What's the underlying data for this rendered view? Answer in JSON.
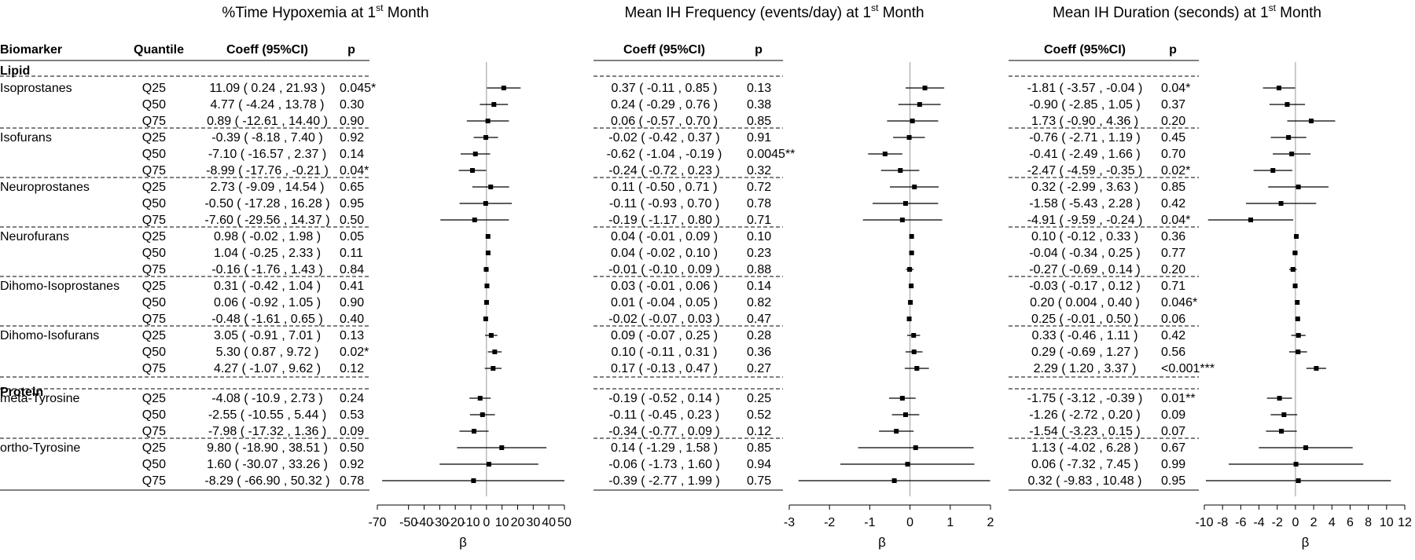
{
  "figure": {
    "headers": {
      "biomarker": "Biomarker",
      "quantile": "Quantile",
      "coeff": "Coeff (95%CI)",
      "p": "p"
    }
  },
  "chart_data": {
    "type": "forest",
    "sections": [
      {
        "name": "Lipid",
        "row": 0
      },
      {
        "name": "Protein",
        "row": 19
      }
    ],
    "rows": [
      {
        "biomarker": "Isoprostanes",
        "quantile": "Q25"
      },
      {
        "biomarker": "",
        "quantile": "Q50"
      },
      {
        "biomarker": "",
        "quantile": "Q75"
      },
      {
        "biomarker": "Isofurans",
        "quantile": "Q25"
      },
      {
        "biomarker": "",
        "quantile": "Q50"
      },
      {
        "biomarker": "",
        "quantile": "Q75"
      },
      {
        "biomarker": "Neuroprostanes",
        "quantile": "Q25"
      },
      {
        "biomarker": "",
        "quantile": "Q50"
      },
      {
        "biomarker": "",
        "quantile": "Q75"
      },
      {
        "biomarker": "Neurofurans",
        "quantile": "Q25"
      },
      {
        "biomarker": "",
        "quantile": "Q50"
      },
      {
        "biomarker": "",
        "quantile": "Q75"
      },
      {
        "biomarker": "Dihomo-Isoprostanes",
        "quantile": "Q25"
      },
      {
        "biomarker": "",
        "quantile": "Q50"
      },
      {
        "biomarker": "",
        "quantile": "Q75"
      },
      {
        "biomarker": "Dihomo-Isofurans",
        "quantile": "Q25"
      },
      {
        "biomarker": "",
        "quantile": "Q50"
      },
      {
        "biomarker": "",
        "quantile": "Q75"
      },
      {
        "biomarker": "meta-Tyrosine",
        "quantile": "Q25"
      },
      {
        "biomarker": "",
        "quantile": "Q50"
      },
      {
        "biomarker": "",
        "quantile": "Q75"
      },
      {
        "biomarker": "ortho-Tyrosine",
        "quantile": "Q25"
      },
      {
        "biomarker": "",
        "quantile": "Q50"
      },
      {
        "biomarker": "",
        "quantile": "Q75"
      }
    ],
    "panels": [
      {
        "title": "%Time Hypoxemia at 1",
        "title_sup": "st",
        "title_end": " Month",
        "xlabel": "β",
        "xlim": [
          -70,
          50
        ],
        "xticks": [
          -70,
          -50,
          -40,
          -30,
          -20,
          -10,
          0,
          10,
          20,
          30,
          40,
          50
        ],
        "xtick_labels": [
          "-70",
          "-50",
          "-40",
          "-30",
          "-20",
          "-10",
          "0",
          "10",
          "20",
          "30",
          "40",
          "50"
        ],
        "estimates": [
          {
            "coeff": "11.09 ( 0.24 ,  21.93 )",
            "p": "0.045*",
            "est": 11.09,
            "lo": 0.24,
            "hi": 21.93
          },
          {
            "coeff": "4.77 ( -4.24 ,  13.78 )",
            "p": "0.30",
            "est": 4.77,
            "lo": -4.24,
            "hi": 13.78
          },
          {
            "coeff": "0.89 ( -12.61 ,  14.40 )",
            "p": "0.90",
            "est": 0.89,
            "lo": -12.61,
            "hi": 14.4
          },
          {
            "coeff": "-0.39 ( -8.18 ,  7.40 )",
            "p": "0.92",
            "est": -0.39,
            "lo": -8.18,
            "hi": 7.4
          },
          {
            "coeff": "-7.10 ( -16.57 ,  2.37 )",
            "p": "0.14",
            "est": -7.1,
            "lo": -16.57,
            "hi": 2.37
          },
          {
            "coeff": "-8.99 ( -17.76 ,  -0.21 )",
            "p": "0.04*",
            "est": -8.99,
            "lo": -17.76,
            "hi": -0.21
          },
          {
            "coeff": "2.73 ( -9.09 ,  14.54 )",
            "p": "0.65",
            "est": 2.73,
            "lo": -9.09,
            "hi": 14.54
          },
          {
            "coeff": "-0.50 ( -17.28 ,  16.28 )",
            "p": "0.95",
            "est": -0.5,
            "lo": -17.28,
            "hi": 16.28
          },
          {
            "coeff": "-7.60 ( -29.56 ,  14.37 )",
            "p": "0.50",
            "est": -7.6,
            "lo": -29.56,
            "hi": 14.37
          },
          {
            "coeff": "0.98 ( -0.02 ,  1.98 )",
            "p": "0.05",
            "est": 0.98,
            "lo": -0.02,
            "hi": 1.98
          },
          {
            "coeff": "1.04 ( -0.25 ,  2.33 )",
            "p": "0.11",
            "est": 1.04,
            "lo": -0.25,
            "hi": 2.33
          },
          {
            "coeff": "-0.16 ( -1.76 ,  1.43 )",
            "p": "0.84",
            "est": -0.16,
            "lo": -1.76,
            "hi": 1.43
          },
          {
            "coeff": "0.31 ( -0.42 ,  1.04 )",
            "p": "0.41",
            "est": 0.31,
            "lo": -0.42,
            "hi": 1.04
          },
          {
            "coeff": "0.06 ( -0.92 ,  1.05 )",
            "p": "0.90",
            "est": 0.06,
            "lo": -0.92,
            "hi": 1.05
          },
          {
            "coeff": "-0.48 ( -1.61 ,  0.65 )",
            "p": "0.40",
            "est": -0.48,
            "lo": -1.61,
            "hi": 0.65
          },
          {
            "coeff": "3.05 ( -0.91 ,  7.01 )",
            "p": "0.13",
            "est": 3.05,
            "lo": -0.91,
            "hi": 7.01
          },
          {
            "coeff": "5.30 ( 0.87 ,  9.72 )",
            "p": "0.02*",
            "est": 5.3,
            "lo": 0.87,
            "hi": 9.72
          },
          {
            "coeff": "4.27 ( -1.07 ,  9.62 )",
            "p": "0.12",
            "est": 4.27,
            "lo": -1.07,
            "hi": 9.62
          },
          {
            "coeff": "-4.08 ( -10.9 ,  2.73 )",
            "p": "0.24",
            "est": -4.08,
            "lo": -10.9,
            "hi": 2.73
          },
          {
            "coeff": "-2.55 ( -10.55 ,  5.44 )",
            "p": "0.53",
            "est": -2.55,
            "lo": -10.55,
            "hi": 5.44
          },
          {
            "coeff": "-7.98 ( -17.32 ,  1.36 )",
            "p": "0.09",
            "est": -7.98,
            "lo": -17.32,
            "hi": 1.36
          },
          {
            "coeff": "9.80 ( -18.90 ,  38.51 )",
            "p": "0.50",
            "est": 9.8,
            "lo": -18.9,
            "hi": 38.51
          },
          {
            "coeff": "1.60 ( -30.07 ,  33.26 )",
            "p": "0.92",
            "est": 1.6,
            "lo": -30.07,
            "hi": 33.26
          },
          {
            "coeff": "-8.29 ( -66.90 ,  50.32 )",
            "p": "0.78",
            "est": -8.29,
            "lo": -66.9,
            "hi": 50.32
          }
        ]
      },
      {
        "title": "Mean IH Frequency (events/day) at 1",
        "title_sup": "st",
        "title_end": " Month",
        "xlabel": "β",
        "xlim": [
          -3,
          2
        ],
        "xticks": [
          -3,
          -2,
          -1,
          0,
          1,
          2
        ],
        "xtick_labels": [
          "-3",
          "-2",
          "-1",
          "0",
          "1",
          "2"
        ],
        "estimates": [
          {
            "coeff": "0.37 ( -0.11 ,  0.85 )",
            "p": "0.13",
            "est": 0.37,
            "lo": -0.11,
            "hi": 0.85
          },
          {
            "coeff": "0.24 ( -0.29 ,  0.76 )",
            "p": "0.38",
            "est": 0.24,
            "lo": -0.29,
            "hi": 0.76
          },
          {
            "coeff": "0.06 ( -0.57 ,  0.70 )",
            "p": "0.85",
            "est": 0.06,
            "lo": -0.57,
            "hi": 0.7
          },
          {
            "coeff": "-0.02 ( -0.42 ,  0.37 )",
            "p": "0.91",
            "est": -0.02,
            "lo": -0.42,
            "hi": 0.37
          },
          {
            "coeff": "-0.62 ( -1.04 ,  -0.19 )",
            "p": "0.0045**",
            "est": -0.62,
            "lo": -1.04,
            "hi": -0.19
          },
          {
            "coeff": "-0.24 ( -0.72 ,  0.23 )",
            "p": "0.32",
            "est": -0.24,
            "lo": -0.72,
            "hi": 0.23
          },
          {
            "coeff": "0.11 ( -0.50 ,  0.71 )",
            "p": "0.72",
            "est": 0.11,
            "lo": -0.5,
            "hi": 0.71
          },
          {
            "coeff": "-0.11 ( -0.93 ,  0.70 )",
            "p": "0.78",
            "est": -0.11,
            "lo": -0.93,
            "hi": 0.7
          },
          {
            "coeff": "-0.19 ( -1.17 ,  0.80 )",
            "p": "0.71",
            "est": -0.19,
            "lo": -1.17,
            "hi": 0.8
          },
          {
            "coeff": "0.04 ( -0.01 ,  0.09 )",
            "p": "0.10",
            "est": 0.04,
            "lo": -0.01,
            "hi": 0.09
          },
          {
            "coeff": "0.04 ( -0.02 ,  0.10 )",
            "p": "0.23",
            "est": 0.04,
            "lo": -0.02,
            "hi": 0.1
          },
          {
            "coeff": "-0.01 ( -0.10 ,  0.09 )",
            "p": "0.88",
            "est": -0.01,
            "lo": -0.1,
            "hi": 0.09
          },
          {
            "coeff": "0.03 ( -0.01 ,  0.06 )",
            "p": "0.14",
            "est": 0.03,
            "lo": -0.01,
            "hi": 0.06
          },
          {
            "coeff": "0.01 ( -0.04 ,  0.05 )",
            "p": "0.82",
            "est": 0.01,
            "lo": -0.04,
            "hi": 0.05
          },
          {
            "coeff": "-0.02 ( -0.07 ,  0.03 )",
            "p": "0.47",
            "est": -0.02,
            "lo": -0.07,
            "hi": 0.03
          },
          {
            "coeff": "0.09 ( -0.07 ,  0.25 )",
            "p": "0.28",
            "est": 0.09,
            "lo": -0.07,
            "hi": 0.25
          },
          {
            "coeff": "0.10 ( -0.11 ,  0.31 )",
            "p": "0.36",
            "est": 0.1,
            "lo": -0.11,
            "hi": 0.31
          },
          {
            "coeff": "0.17 ( -0.13 ,  0.47 )",
            "p": "0.27",
            "est": 0.17,
            "lo": -0.13,
            "hi": 0.47
          },
          {
            "coeff": "-0.19 ( -0.52 ,  0.14 )",
            "p": "0.25",
            "est": -0.19,
            "lo": -0.52,
            "hi": 0.14
          },
          {
            "coeff": "-0.11 ( -0.45 ,  0.23 )",
            "p": "0.52",
            "est": -0.11,
            "lo": -0.45,
            "hi": 0.23
          },
          {
            "coeff": "-0.34 ( -0.77 ,  0.09 )",
            "p": "0.12",
            "est": -0.34,
            "lo": -0.77,
            "hi": 0.09
          },
          {
            "coeff": "0.14 ( -1.29 ,  1.58 )",
            "p": "0.85",
            "est": 0.14,
            "lo": -1.29,
            "hi": 1.58
          },
          {
            "coeff": "-0.06 ( -1.73 ,  1.60 )",
            "p": "0.94",
            "est": -0.06,
            "lo": -1.73,
            "hi": 1.6
          },
          {
            "coeff": "-0.39 ( -2.77 ,  1.99 )",
            "p": "0.75",
            "est": -0.39,
            "lo": -2.77,
            "hi": 1.99
          }
        ]
      },
      {
        "title": "Mean IH Duration (seconds) at 1",
        "title_sup": "st",
        "title_end": " Month",
        "xlabel": "β",
        "xlim": [
          -10,
          12
        ],
        "xticks": [
          -10,
          -8,
          -6,
          -4,
          -2,
          0,
          2,
          4,
          6,
          8,
          10,
          12
        ],
        "xtick_labels": [
          "-10",
          "-8",
          "-6",
          "-4",
          "-2",
          "0",
          "2",
          "4",
          "6",
          "8",
          "10",
          "12"
        ],
        "estimates": [
          {
            "coeff": "-1.81 ( -3.57 ,  -0.04 )",
            "p": "0.04*",
            "est": -1.81,
            "lo": -3.57,
            "hi": -0.04
          },
          {
            "coeff": "-0.90 ( -2.85 ,  1.05 )",
            "p": "0.37",
            "est": -0.9,
            "lo": -2.85,
            "hi": 1.05
          },
          {
            "coeff": "1.73 ( -0.90 ,  4.36 )",
            "p": "0.20",
            "est": 1.73,
            "lo": -0.9,
            "hi": 4.36
          },
          {
            "coeff": "-0.76 ( -2.71 ,  1.19 )",
            "p": "0.45",
            "est": -0.76,
            "lo": -2.71,
            "hi": 1.19
          },
          {
            "coeff": "-0.41 ( -2.49 ,  1.66 )",
            "p": "0.70",
            "est": -0.41,
            "lo": -2.49,
            "hi": 1.66
          },
          {
            "coeff": "-2.47 ( -4.59 ,  -0.35 )",
            "p": "0.02*",
            "est": -2.47,
            "lo": -4.59,
            "hi": -0.35
          },
          {
            "coeff": "0.32 ( -2.99 ,  3.63 )",
            "p": "0.85",
            "est": 0.32,
            "lo": -2.99,
            "hi": 3.63
          },
          {
            "coeff": "-1.58 ( -5.43 ,  2.28 )",
            "p": "0.42",
            "est": -1.58,
            "lo": -5.43,
            "hi": 2.28
          },
          {
            "coeff": "-4.91 ( -9.59 ,  -0.24 )",
            "p": "0.04*",
            "est": -4.91,
            "lo": -9.59,
            "hi": -0.24
          },
          {
            "coeff": "0.10 ( -0.12 ,  0.33 )",
            "p": "0.36",
            "est": 0.1,
            "lo": -0.12,
            "hi": 0.33
          },
          {
            "coeff": "-0.04 ( -0.34 ,  0.25 )",
            "p": "0.77",
            "est": -0.04,
            "lo": -0.34,
            "hi": 0.25
          },
          {
            "coeff": "-0.27 ( -0.69 ,  0.14 )",
            "p": "0.20",
            "est": -0.27,
            "lo": -0.69,
            "hi": 0.14
          },
          {
            "coeff": "-0.03 ( -0.17 ,  0.12 )",
            "p": "0.71",
            "est": -0.03,
            "lo": -0.17,
            "hi": 0.12
          },
          {
            "coeff": "0.20 ( 0.004 ,  0.40 )",
            "p": "0.046*",
            "est": 0.2,
            "lo": 0.004,
            "hi": 0.4
          },
          {
            "coeff": "0.25 ( -0.01 ,  0.50 )",
            "p": "0.06",
            "est": 0.25,
            "lo": -0.01,
            "hi": 0.5
          },
          {
            "coeff": "0.33 ( -0.46 ,  1.11 )",
            "p": "0.42",
            "est": 0.33,
            "lo": -0.46,
            "hi": 1.11
          },
          {
            "coeff": "0.29 ( -0.69 ,  1.27 )",
            "p": "0.56",
            "est": 0.29,
            "lo": -0.69,
            "hi": 1.27
          },
          {
            "coeff": "2.29 ( 1.20 ,  3.37 )",
            "p": "<0.001***",
            "est": 2.29,
            "lo": 1.2,
            "hi": 3.37
          },
          {
            "coeff": "-1.75 ( -3.12 ,  -0.39 )",
            "p": "0.01**",
            "est": -1.75,
            "lo": -3.12,
            "hi": -0.39
          },
          {
            "coeff": "-1.26 ( -2.72 ,  0.20 )",
            "p": "0.09",
            "est": -1.26,
            "lo": -2.72,
            "hi": 0.2
          },
          {
            "coeff": "-1.54 ( -3.23 ,  0.15 )",
            "p": "0.07",
            "est": -1.54,
            "lo": -3.23,
            "hi": 0.15
          },
          {
            "coeff": "1.13 ( -4.02 ,  6.28 )",
            "p": "0.67",
            "est": 1.13,
            "lo": -4.02,
            "hi": 6.28
          },
          {
            "coeff": "0.06 ( -7.32 ,  7.45 )",
            "p": "0.99",
            "est": 0.06,
            "lo": -7.32,
            "hi": 7.45
          },
          {
            "coeff": "0.32 ( -9.83 ,  10.48 )",
            "p": "0.95",
            "est": 0.32,
            "lo": -9.83,
            "hi": 10.48
          }
        ]
      }
    ]
  }
}
